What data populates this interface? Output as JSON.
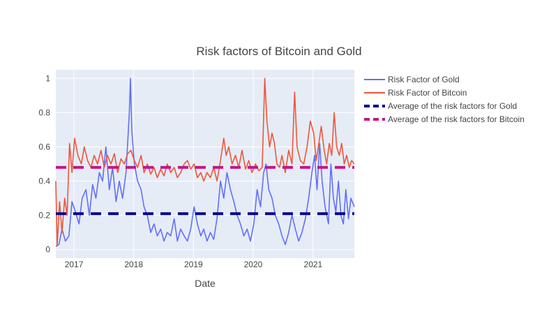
{
  "chart_data": {
    "type": "line",
    "title": "Risk factors of Bitcoin and Gold",
    "xlabel": "Date",
    "ylabel": "",
    "xlim": [
      "2016-09-12",
      "2021-09-10"
    ],
    "ylim": [
      -0.05,
      1.05
    ],
    "x_ticks": [
      "2017-01-01",
      "2018-01-01",
      "2019-01-01",
      "2020-01-01",
      "2021-01-01"
    ],
    "x_tick_labels": [
      "2017",
      "2018",
      "2019",
      "2020",
      "2021"
    ],
    "y_ticks": [
      0,
      0.2,
      0.4,
      0.6,
      0.8,
      1
    ],
    "y_tick_labels": [
      "0",
      "0.2",
      "0.4",
      "0.6",
      "0.8",
      "1"
    ],
    "grid": true,
    "legend_position": "right",
    "series": [
      {
        "name": "Risk Factor of Gold",
        "color": "#636efa",
        "style": "solid",
        "points": [
          [
            "2016-09-12",
            0.02
          ],
          [
            "2016-10-01",
            0.03
          ],
          [
            "2016-10-20",
            0.12
          ],
          [
            "2016-11-10",
            0.05
          ],
          [
            "2016-12-01",
            0.08
          ],
          [
            "2016-12-20",
            0.28
          ],
          [
            "2017-01-10",
            0.22
          ],
          [
            "2017-02-01",
            0.15
          ],
          [
            "2017-02-20",
            0.3
          ],
          [
            "2017-03-15",
            0.35
          ],
          [
            "2017-04-05",
            0.2
          ],
          [
            "2017-04-25",
            0.38
          ],
          [
            "2017-05-15",
            0.3
          ],
          [
            "2017-06-05",
            0.45
          ],
          [
            "2017-06-25",
            0.4
          ],
          [
            "2017-07-15",
            0.6
          ],
          [
            "2017-08-05",
            0.35
          ],
          [
            "2017-08-25",
            0.48
          ],
          [
            "2017-09-15",
            0.28
          ],
          [
            "2017-10-05",
            0.4
          ],
          [
            "2017-10-25",
            0.3
          ],
          [
            "2017-11-15",
            0.45
          ],
          [
            "2017-12-05",
            0.8
          ],
          [
            "2017-12-12",
            1.0
          ],
          [
            "2017-12-20",
            0.7
          ],
          [
            "2018-01-05",
            0.5
          ],
          [
            "2018-01-25",
            0.4
          ],
          [
            "2018-02-15",
            0.35
          ],
          [
            "2018-03-05",
            0.25
          ],
          [
            "2018-03-25",
            0.2
          ],
          [
            "2018-04-15",
            0.1
          ],
          [
            "2018-05-05",
            0.15
          ],
          [
            "2018-05-25",
            0.08
          ],
          [
            "2018-06-15",
            0.12
          ],
          [
            "2018-07-05",
            0.05
          ],
          [
            "2018-07-25",
            0.1
          ],
          [
            "2018-08-15",
            0.08
          ],
          [
            "2018-09-05",
            0.18
          ],
          [
            "2018-09-25",
            0.05
          ],
          [
            "2018-10-15",
            0.12
          ],
          [
            "2018-11-05",
            0.08
          ],
          [
            "2018-11-25",
            0.05
          ],
          [
            "2018-12-15",
            0.12
          ],
          [
            "2019-01-05",
            0.25
          ],
          [
            "2019-01-25",
            0.15
          ],
          [
            "2019-02-15",
            0.08
          ],
          [
            "2019-03-05",
            0.12
          ],
          [
            "2019-03-25",
            0.05
          ],
          [
            "2019-04-15",
            0.1
          ],
          [
            "2019-05-05",
            0.06
          ],
          [
            "2019-05-25",
            0.18
          ],
          [
            "2019-06-15",
            0.4
          ],
          [
            "2019-07-05",
            0.3
          ],
          [
            "2019-07-25",
            0.45
          ],
          [
            "2019-08-15",
            0.35
          ],
          [
            "2019-09-05",
            0.28
          ],
          [
            "2019-09-25",
            0.2
          ],
          [
            "2019-10-15",
            0.15
          ],
          [
            "2019-11-05",
            0.08
          ],
          [
            "2019-11-25",
            0.12
          ],
          [
            "2019-12-15",
            0.05
          ],
          [
            "2020-01-05",
            0.15
          ],
          [
            "2020-01-25",
            0.35
          ],
          [
            "2020-02-15",
            0.25
          ],
          [
            "2020-03-05",
            0.45
          ],
          [
            "2020-03-20",
            0.5
          ],
          [
            "2020-04-05",
            0.35
          ],
          [
            "2020-04-25",
            0.3
          ],
          [
            "2020-05-15",
            0.2
          ],
          [
            "2020-06-05",
            0.15
          ],
          [
            "2020-06-25",
            0.08
          ],
          [
            "2020-07-15",
            0.03
          ],
          [
            "2020-08-05",
            0.1
          ],
          [
            "2020-08-25",
            0.2
          ],
          [
            "2020-09-15",
            0.12
          ],
          [
            "2020-10-05",
            0.05
          ],
          [
            "2020-10-25",
            0.1
          ],
          [
            "2020-11-15",
            0.18
          ],
          [
            "2020-12-05",
            0.3
          ],
          [
            "2020-12-25",
            0.45
          ],
          [
            "2021-01-10",
            0.55
          ],
          [
            "2021-01-25",
            0.35
          ],
          [
            "2021-02-10",
            0.62
          ],
          [
            "2021-02-25",
            0.4
          ],
          [
            "2021-03-15",
            0.25
          ],
          [
            "2021-04-05",
            0.15
          ],
          [
            "2021-04-20",
            0.5
          ],
          [
            "2021-05-05",
            0.3
          ],
          [
            "2021-05-20",
            0.22
          ],
          [
            "2021-06-05",
            0.4
          ],
          [
            "2021-06-20",
            0.2
          ],
          [
            "2021-07-05",
            0.15
          ],
          [
            "2021-07-20",
            0.35
          ],
          [
            "2021-08-05",
            0.18
          ],
          [
            "2021-08-20",
            0.3
          ],
          [
            "2021-09-10",
            0.25
          ]
        ]
      },
      {
        "name": "Risk Factor of Bitcoin",
        "color": "#ef553b",
        "style": "solid",
        "points": [
          [
            "2016-09-12",
            0.4
          ],
          [
            "2016-09-20",
            0.02
          ],
          [
            "2016-10-05",
            0.28
          ],
          [
            "2016-10-20",
            0.1
          ],
          [
            "2016-11-05",
            0.3
          ],
          [
            "2016-11-20",
            0.2
          ],
          [
            "2016-12-05",
            0.62
          ],
          [
            "2016-12-20",
            0.45
          ],
          [
            "2017-01-05",
            0.65
          ],
          [
            "2017-01-25",
            0.55
          ],
          [
            "2017-02-15",
            0.5
          ],
          [
            "2017-03-05",
            0.6
          ],
          [
            "2017-03-25",
            0.52
          ],
          [
            "2017-04-15",
            0.48
          ],
          [
            "2017-05-05",
            0.55
          ],
          [
            "2017-05-25",
            0.5
          ],
          [
            "2017-06-15",
            0.58
          ],
          [
            "2017-07-05",
            0.48
          ],
          [
            "2017-07-25",
            0.55
          ],
          [
            "2017-08-15",
            0.5
          ],
          [
            "2017-09-05",
            0.56
          ],
          [
            "2017-09-25",
            0.45
          ],
          [
            "2017-10-15",
            0.53
          ],
          [
            "2017-11-05",
            0.5
          ],
          [
            "2017-11-25",
            0.56
          ],
          [
            "2017-12-15",
            0.58
          ],
          [
            "2018-01-05",
            0.52
          ],
          [
            "2018-01-25",
            0.48
          ],
          [
            "2018-02-15",
            0.55
          ],
          [
            "2018-03-05",
            0.45
          ],
          [
            "2018-03-25",
            0.5
          ],
          [
            "2018-04-15",
            0.44
          ],
          [
            "2018-05-05",
            0.48
          ],
          [
            "2018-05-25",
            0.42
          ],
          [
            "2018-06-15",
            0.47
          ],
          [
            "2018-07-05",
            0.43
          ],
          [
            "2018-07-25",
            0.5
          ],
          [
            "2018-08-15",
            0.45
          ],
          [
            "2018-09-05",
            0.48
          ],
          [
            "2018-09-25",
            0.42
          ],
          [
            "2018-10-15",
            0.45
          ],
          [
            "2018-11-05",
            0.5
          ],
          [
            "2018-11-25",
            0.52
          ],
          [
            "2018-12-15",
            0.47
          ],
          [
            "2019-01-05",
            0.5
          ],
          [
            "2019-01-25",
            0.42
          ],
          [
            "2019-02-15",
            0.45
          ],
          [
            "2019-03-05",
            0.4
          ],
          [
            "2019-03-25",
            0.45
          ],
          [
            "2019-04-15",
            0.42
          ],
          [
            "2019-05-05",
            0.48
          ],
          [
            "2019-05-25",
            0.4
          ],
          [
            "2019-06-15",
            0.52
          ],
          [
            "2019-07-05",
            0.65
          ],
          [
            "2019-07-20",
            0.55
          ],
          [
            "2019-08-05",
            0.6
          ],
          [
            "2019-08-25",
            0.5
          ],
          [
            "2019-09-15",
            0.55
          ],
          [
            "2019-10-05",
            0.48
          ],
          [
            "2019-10-25",
            0.58
          ],
          [
            "2019-11-15",
            0.47
          ],
          [
            "2019-12-05",
            0.52
          ],
          [
            "2019-12-25",
            0.45
          ],
          [
            "2020-01-15",
            0.5
          ],
          [
            "2020-02-05",
            0.46
          ],
          [
            "2020-02-25",
            0.48
          ],
          [
            "2020-03-12",
            1.0
          ],
          [
            "2020-03-25",
            0.75
          ],
          [
            "2020-04-10",
            0.6
          ],
          [
            "2020-04-25",
            0.68
          ],
          [
            "2020-05-10",
            0.62
          ],
          [
            "2020-05-25",
            0.5
          ],
          [
            "2020-06-10",
            0.48
          ],
          [
            "2020-06-25",
            0.55
          ],
          [
            "2020-07-15",
            0.45
          ],
          [
            "2020-08-05",
            0.58
          ],
          [
            "2020-08-25",
            0.5
          ],
          [
            "2020-09-10",
            0.92
          ],
          [
            "2020-09-25",
            0.6
          ],
          [
            "2020-10-15",
            0.52
          ],
          [
            "2020-11-05",
            0.5
          ],
          [
            "2020-11-25",
            0.6
          ],
          [
            "2020-12-15",
            0.75
          ],
          [
            "2021-01-05",
            0.68
          ],
          [
            "2021-01-20",
            0.52
          ],
          [
            "2021-02-05",
            0.62
          ],
          [
            "2021-02-20",
            0.72
          ],
          [
            "2021-03-10",
            0.58
          ],
          [
            "2021-03-25",
            0.5
          ],
          [
            "2021-04-10",
            0.62
          ],
          [
            "2021-04-25",
            0.55
          ],
          [
            "2021-05-10",
            0.8
          ],
          [
            "2021-05-25",
            0.6
          ],
          [
            "2021-06-10",
            0.55
          ],
          [
            "2021-06-25",
            0.62
          ],
          [
            "2021-07-10",
            0.5
          ],
          [
            "2021-07-25",
            0.55
          ],
          [
            "2021-08-10",
            0.48
          ],
          [
            "2021-08-25",
            0.52
          ],
          [
            "2021-09-10",
            0.5
          ]
        ]
      },
      {
        "name": "Average of the risk factors for Gold",
        "color": "#00008b",
        "style": "dash",
        "points": [
          [
            "2016-09-12",
            0.21
          ],
          [
            "2021-09-10",
            0.21
          ]
        ]
      },
      {
        "name": "Average of the risk factors for Bitcoin",
        "color": "#c71585",
        "style": "dash",
        "points": [
          [
            "2016-09-12",
            0.48
          ],
          [
            "2021-09-10",
            0.48
          ]
        ]
      }
    ]
  }
}
